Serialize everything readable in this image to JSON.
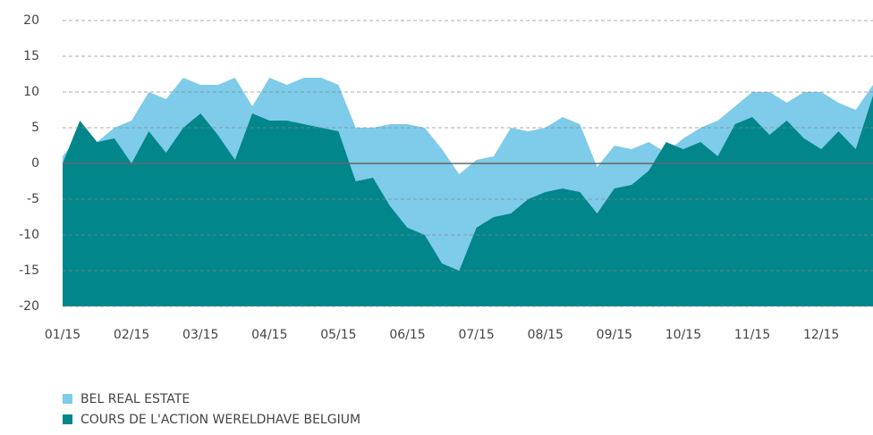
{
  "chart_data": {
    "type": "area",
    "categories": [
      "01/15",
      null,
      null,
      null,
      "02/15",
      null,
      null,
      null,
      "03/15",
      null,
      null,
      null,
      "04/15",
      null,
      null,
      null,
      "05/15",
      null,
      null,
      null,
      "06/15",
      null,
      null,
      null,
      "07/15",
      null,
      null,
      null,
      "08/15",
      null,
      null,
      null,
      "09/15",
      null,
      null,
      null,
      "10/15",
      null,
      null,
      null,
      "11/15",
      null,
      null,
      null,
      "12/15",
      null,
      null,
      null
    ],
    "series": [
      {
        "name": "BEL REAL ESTATE",
        "color": "#7ecbea",
        "values": [
          1,
          4,
          3,
          5,
          6,
          10,
          9,
          12,
          11,
          11,
          12,
          8,
          12,
          11,
          12,
          12,
          11,
          5,
          5,
          5.5,
          5.5,
          5,
          2,
          -1.5,
          0.5,
          1,
          5,
          4.5,
          5,
          6.5,
          5.5,
          -0.5,
          2.5,
          2,
          3,
          1.5,
          3.5,
          5,
          6,
          8,
          10,
          10,
          8.5,
          10,
          10,
          8.5,
          7.5,
          11
        ]
      },
      {
        "name": "COURS DE L'ACTION WERELDHAVE BELGIUM",
        "color": "#00868b",
        "values": [
          0,
          6,
          3,
          3.5,
          0,
          4.5,
          1.5,
          5,
          7,
          4,
          0.5,
          7,
          6,
          6,
          5.5,
          5,
          4.5,
          -2.5,
          -2,
          -6,
          -9,
          -10,
          -14,
          -15,
          -9,
          -7.5,
          -7,
          -5,
          -4,
          -3.5,
          -4,
          -7,
          -3.5,
          -3,
          -1,
          3,
          2,
          3,
          1,
          5.5,
          6.5,
          4,
          6,
          3.5,
          2,
          4.5,
          2,
          9.5
        ]
      }
    ],
    "ylim": [
      -20,
      20
    ],
    "yticks": [
      -20,
      -15,
      -10,
      -5,
      0,
      5,
      10,
      15,
      20
    ],
    "grid": true,
    "legend": "bottom-left"
  }
}
